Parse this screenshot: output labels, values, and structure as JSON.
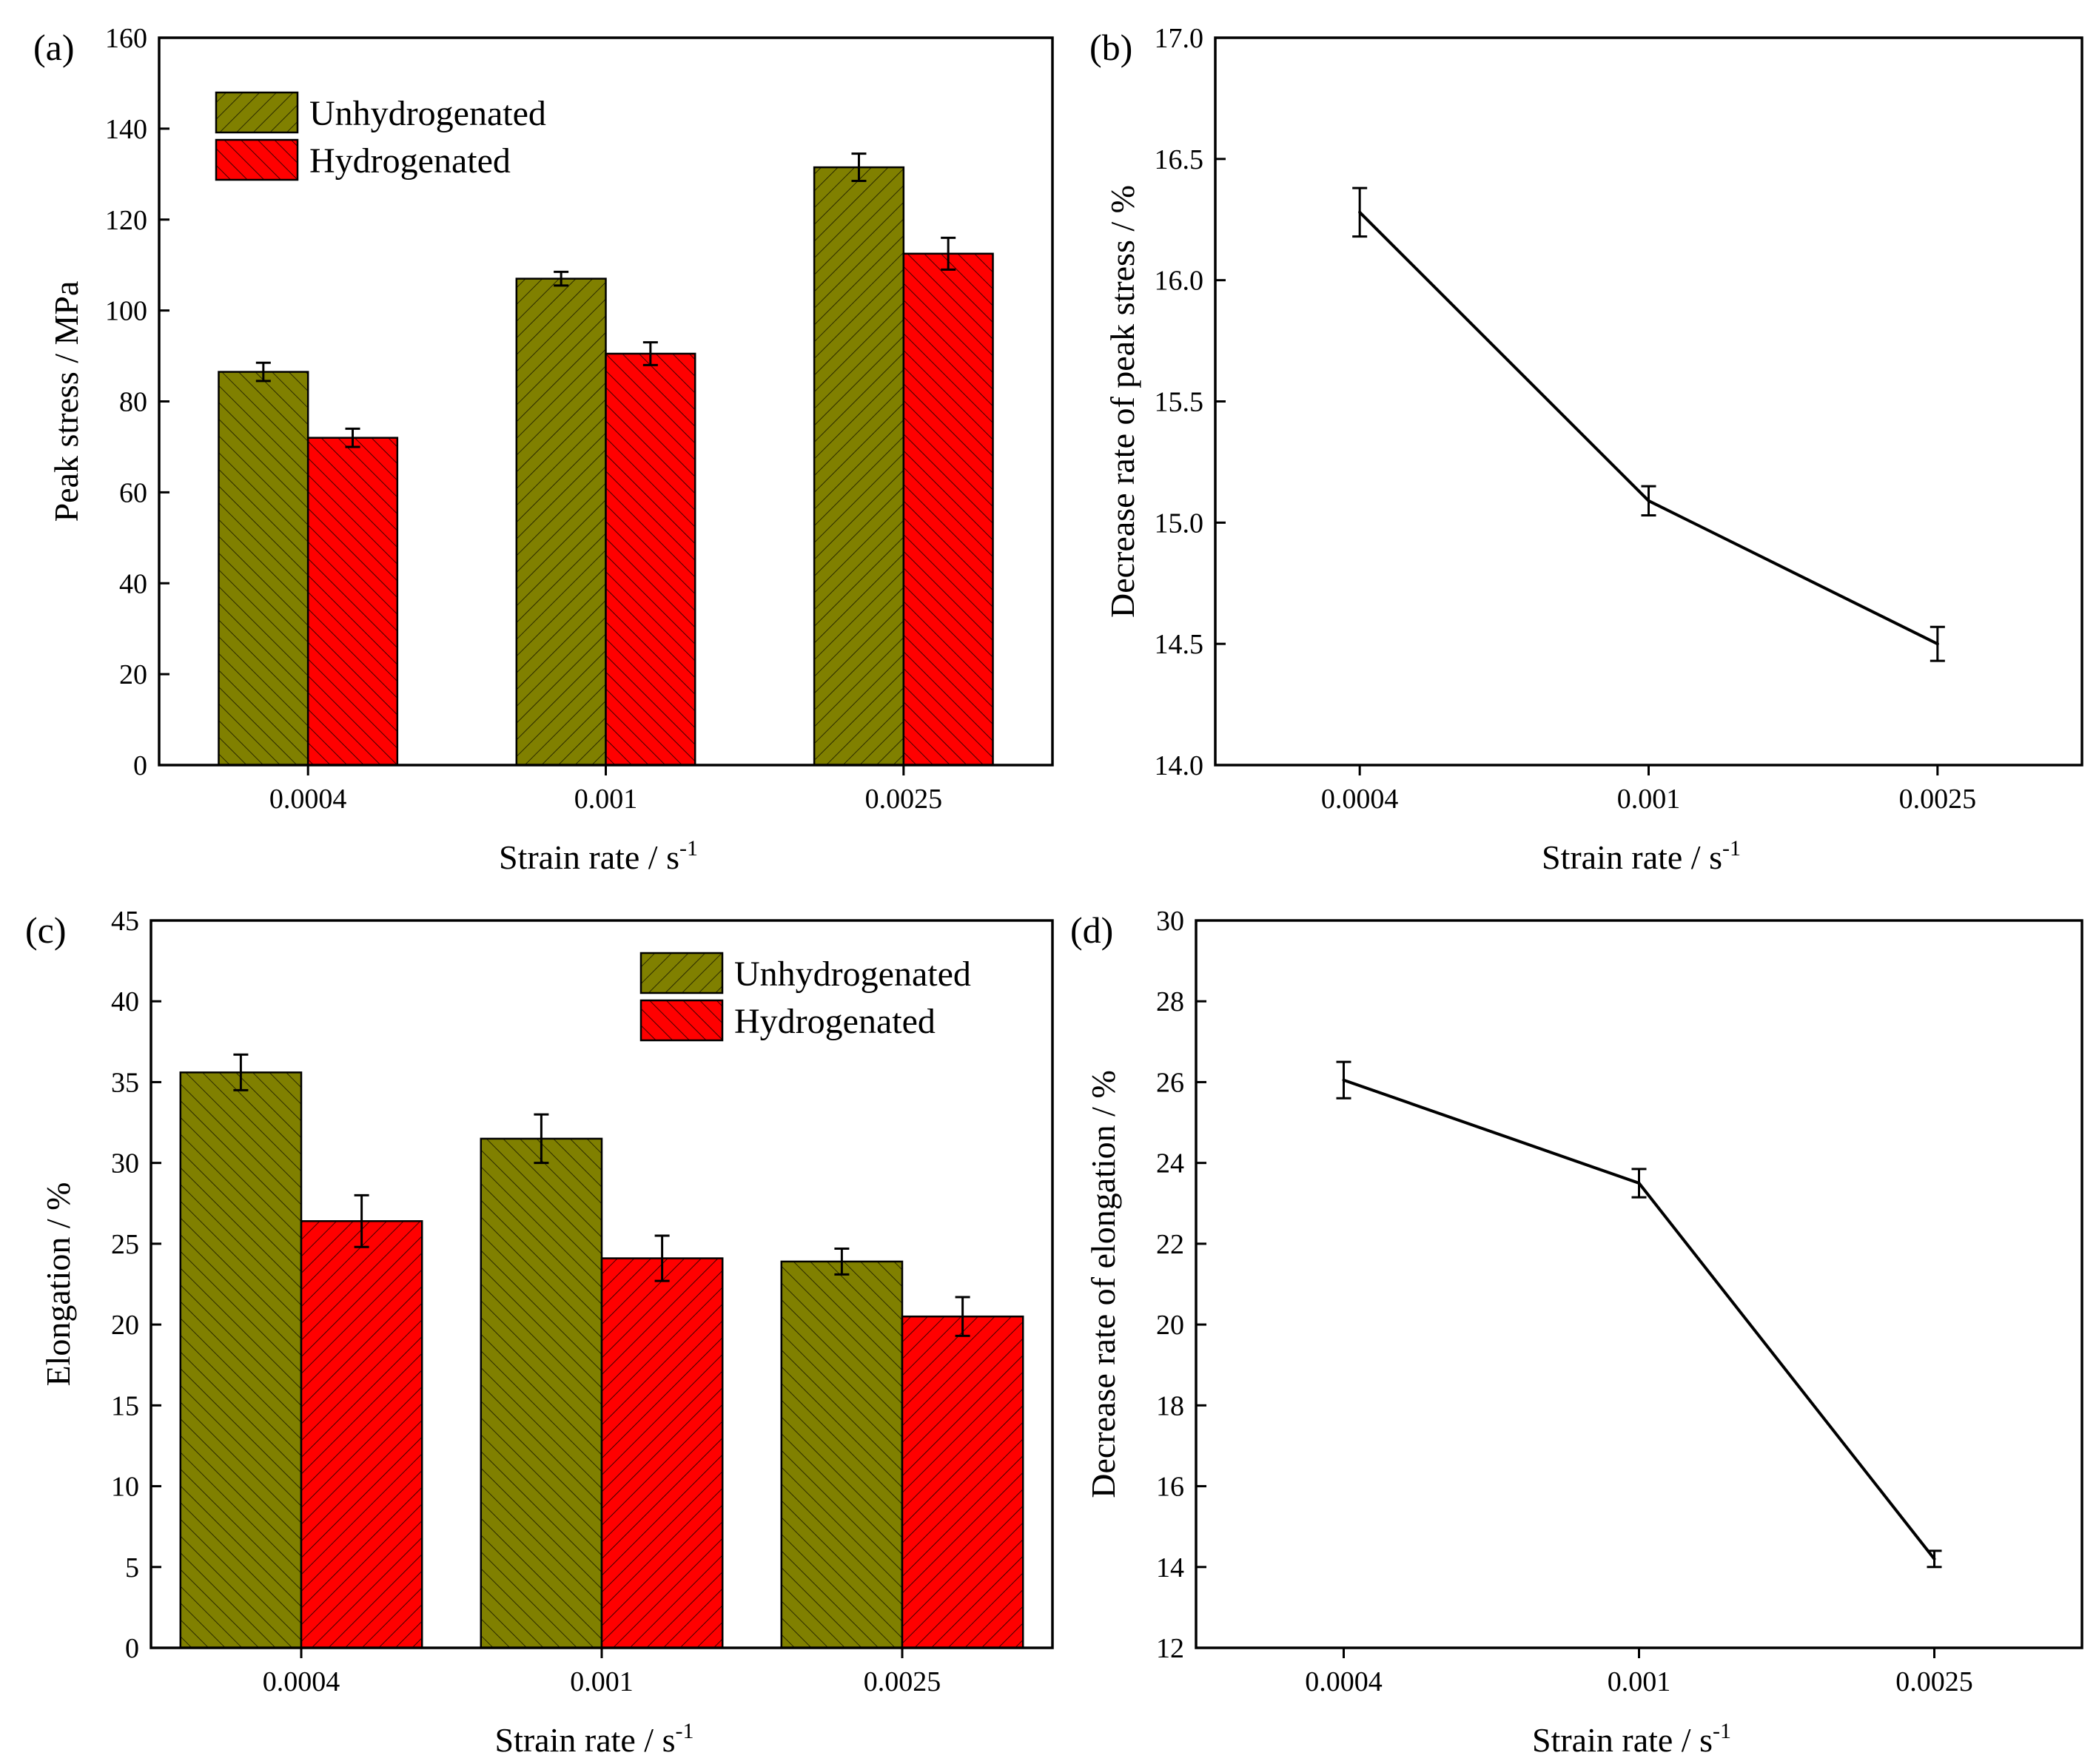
{
  "colors": {
    "unhydrogenated": "#808000",
    "hydrogenated": "#ff0000",
    "line": "#000000"
  },
  "chart_data": [
    {
      "panel": "(a)",
      "type": "bar",
      "categories": [
        "0.0004",
        "0.001",
        "0.0025"
      ],
      "xlabel": "Strain rate / s",
      "xlabel_sup": "-1",
      "ylabel": "Peak stress / MPa",
      "ylim": [
        0,
        160
      ],
      "yticks": [
        0,
        20,
        40,
        60,
        80,
        100,
        120,
        140,
        160
      ],
      "legend": "top-left",
      "series": [
        {
          "name": "Unhydrogenated",
          "values": [
            86.5,
            107,
            131.5
          ],
          "errors": [
            2,
            1.5,
            3
          ]
        },
        {
          "name": "Hydrogenated",
          "values": [
            72,
            90.5,
            112.5
          ],
          "errors": [
            2,
            2.5,
            3.5
          ]
        }
      ]
    },
    {
      "panel": "(b)",
      "type": "line",
      "categories": [
        "0.0004",
        "0.001",
        "0.0025"
      ],
      "xlabel": "Strain rate / s",
      "xlabel_sup": "-1",
      "ylabel": "Decrease rate of peak stress / %",
      "ylim": [
        14.0,
        17.0
      ],
      "yticks": [
        "14.0",
        "14.5",
        "15.0",
        "15.5",
        "16.0",
        "16.5",
        "17.0"
      ],
      "values": [
        16.28,
        15.09,
        14.5
      ],
      "errors": [
        0.1,
        0.06,
        0.07
      ]
    },
    {
      "panel": "(c)",
      "type": "bar",
      "categories": [
        "0.0004",
        "0.001",
        "0.0025"
      ],
      "xlabel": "Strain rate / s",
      "xlabel_sup": "-1",
      "ylabel": "Elongation / %",
      "ylim": [
        0,
        45
      ],
      "yticks": [
        0,
        5,
        10,
        15,
        20,
        25,
        30,
        35,
        40,
        45
      ],
      "legend": "top-right",
      "series": [
        {
          "name": "Unhydrogenated",
          "values": [
            35.6,
            31.5,
            23.9
          ],
          "errors": [
            1.1,
            1.5,
            0.8
          ]
        },
        {
          "name": "Hydrogenated",
          "values": [
            26.4,
            24.1,
            20.5
          ],
          "errors": [
            1.6,
            1.4,
            1.2
          ]
        }
      ]
    },
    {
      "panel": "(d)",
      "type": "line",
      "categories": [
        "0.0004",
        "0.001",
        "0.0025"
      ],
      "xlabel": "Strain rate / s",
      "xlabel_sup": "-1",
      "ylabel": "Decrease rate of elongation / %",
      "ylim": [
        12,
        30
      ],
      "yticks": [
        12,
        14,
        16,
        18,
        20,
        22,
        24,
        26,
        28,
        30
      ],
      "values": [
        26.05,
        23.5,
        14.2
      ],
      "errors": [
        0.45,
        0.35,
        0.2
      ]
    }
  ]
}
